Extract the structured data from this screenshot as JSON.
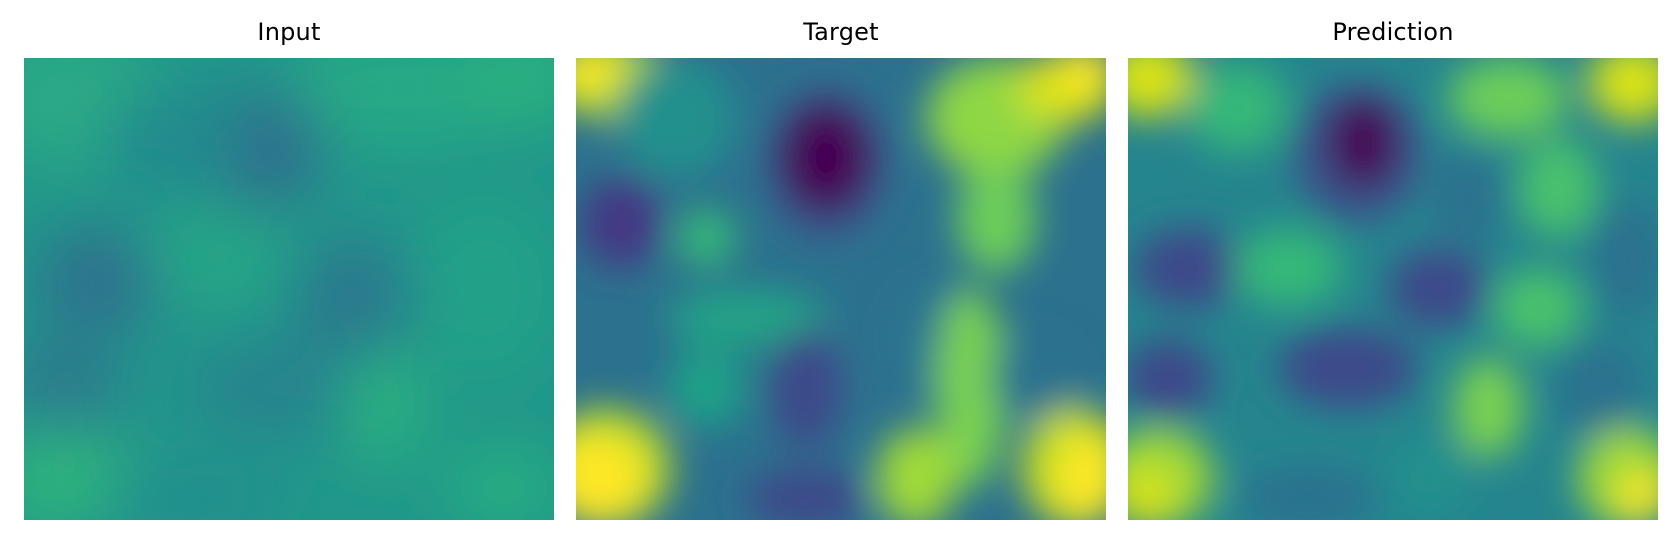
{
  "panels": [
    {
      "title": "Input",
      "image_label": "input-field-heatmap"
    },
    {
      "title": "Target",
      "image_label": "target-field-heatmap"
    },
    {
      "title": "Prediction",
      "image_label": "prediction-field-heatmap"
    }
  ],
  "colormap": [
    "#440154",
    "#3b528b",
    "#21918c",
    "#5ec962",
    "#fde725"
  ]
}
